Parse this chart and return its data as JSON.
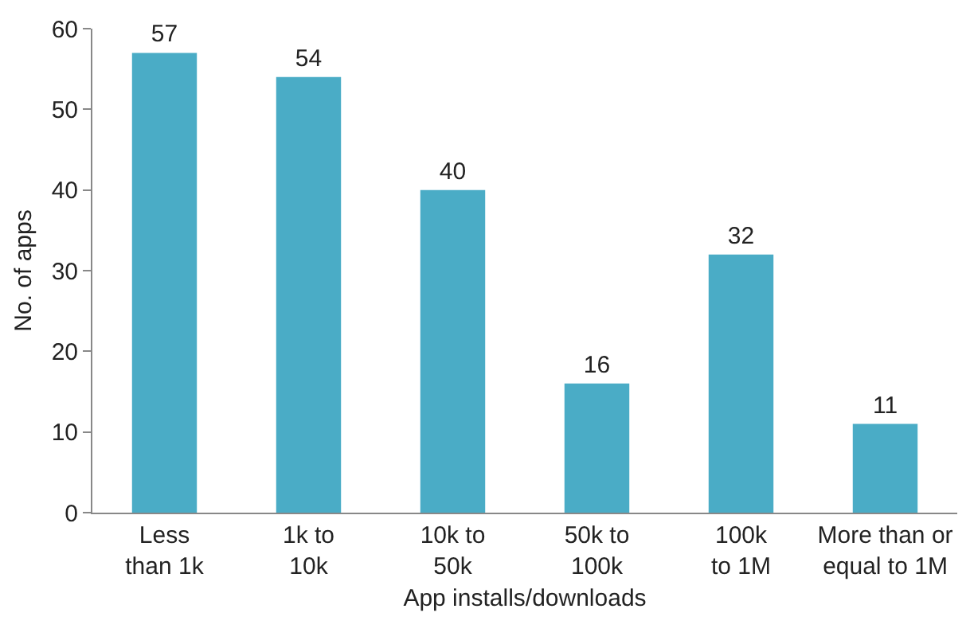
{
  "chart_data": {
    "type": "bar",
    "categories": [
      "Less\nthan 1k",
      "1k to\n10k",
      "10k to\n50k",
      "50k to\n100k",
      "100k\nto 1M",
      "More than or\nequal to 1M"
    ],
    "values": [
      57,
      54,
      40,
      16,
      32,
      11
    ],
    "color": "#4aacc6",
    "data_labels": true,
    "xlabel": "App installs/downloads",
    "ylabel": "No. of apps",
    "ylim": [
      0,
      60
    ],
    "yticks": [
      0,
      10,
      20,
      30,
      40,
      50,
      60
    ],
    "grid": false,
    "legend": false
  }
}
